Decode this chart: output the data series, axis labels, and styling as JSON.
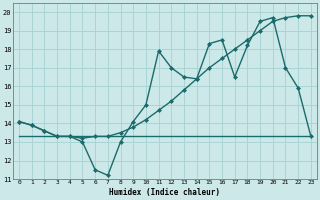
{
  "xlabel": "Humidex (Indice chaleur)",
  "ylabel": "",
  "bg_color": "#cce8e8",
  "grid_color": "#aad4d4",
  "line_color": "#1a6b6b",
  "xlim": [
    -0.5,
    23.5
  ],
  "ylim": [
    11,
    20.5
  ],
  "xticks": [
    0,
    1,
    2,
    3,
    4,
    5,
    6,
    7,
    8,
    9,
    10,
    11,
    12,
    13,
    14,
    15,
    16,
    17,
    18,
    19,
    20,
    21,
    22,
    23
  ],
  "yticks": [
    11,
    12,
    13,
    14,
    15,
    16,
    17,
    18,
    19,
    20
  ],
  "line1_x": [
    0,
    1,
    2,
    3,
    4,
    5,
    6,
    7,
    8,
    9,
    10,
    11,
    12,
    13,
    14,
    15,
    16,
    17,
    18,
    19,
    20,
    21,
    22,
    23
  ],
  "line1_y": [
    14.1,
    13.9,
    13.6,
    13.3,
    13.3,
    13.0,
    11.5,
    11.2,
    13.0,
    14.1,
    15.0,
    17.9,
    17.0,
    16.5,
    16.4,
    18.3,
    18.5,
    16.5,
    18.2,
    19.5,
    19.7,
    17.0,
    15.9,
    13.3
  ],
  "line2_x": [
    0,
    1,
    2,
    3,
    4,
    5,
    6,
    7,
    8,
    9,
    10,
    11,
    12,
    13,
    14,
    15,
    16,
    17,
    18,
    19,
    20,
    21,
    22,
    23
  ],
  "line2_y": [
    14.1,
    13.9,
    13.6,
    13.3,
    13.3,
    13.2,
    13.3,
    13.3,
    13.5,
    13.8,
    14.2,
    14.7,
    15.2,
    15.8,
    16.4,
    17.0,
    17.5,
    18.0,
    18.5,
    19.0,
    19.5,
    19.7,
    19.8,
    19.8
  ],
  "line3_x": [
    0,
    23
  ],
  "line3_y": [
    13.3,
    13.3
  ]
}
